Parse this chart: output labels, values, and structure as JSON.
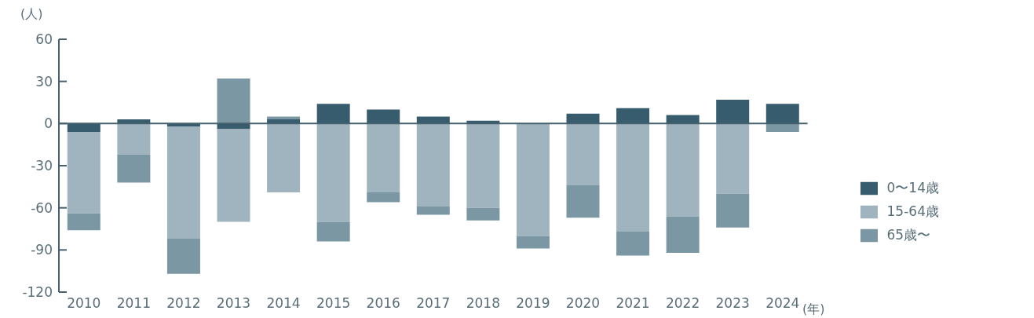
{
  "chart_data": {
    "type": "bar",
    "stacked": true,
    "ylabel": "(人)",
    "xlabel": "(年)",
    "categories": [
      "2010",
      "2011",
      "2012",
      "2013",
      "2014",
      "2015",
      "2016",
      "2017",
      "2018",
      "2019",
      "2020",
      "2021",
      "2022",
      "2023",
      "2024"
    ],
    "series": [
      {
        "name": "0〜14歳",
        "color": "#375c6e",
        "values": [
          -6,
          3,
          -2,
          -4,
          3,
          14,
          10,
          5,
          2,
          0,
          7,
          11,
          6,
          17,
          14
        ]
      },
      {
        "name": "15-64歳",
        "color": "#a0b4c0",
        "values": [
          -58,
          -22,
          -80,
          -66,
          -49,
          -70,
          -49,
          -59,
          -60,
          -80,
          -44,
          -77,
          -66,
          -50,
          0
        ]
      },
      {
        "name": "65歳〜",
        "color": "#7a97a3",
        "values": [
          -12,
          -20,
          -25,
          32,
          2,
          -14,
          -7,
          -6,
          -9,
          -9,
          -23,
          -17,
          -26,
          -24,
          -6
        ]
      }
    ],
    "ylim": [
      -120,
      60
    ],
    "yticks": [
      -120,
      -90,
      -60,
      -30,
      0,
      30,
      60
    ],
    "ref_lines": [
      {
        "axis": "y",
        "value": 0
      }
    ],
    "legend": "right"
  }
}
